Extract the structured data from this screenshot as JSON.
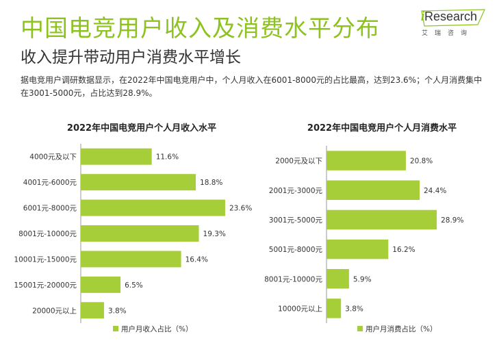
{
  "header": {
    "title": "中国电竞用户收入及消费水平分布",
    "subtitle": "收入提升带动用户消费水平增长",
    "description": "据电竞用户调研数据显示，在2022年中国电竞用户中，个人月收入在6001-8000元的占比最高，达到23.6%；个人月消费集中在3001-5000元，占比达到28.9%。"
  },
  "logo": {
    "main_prefix": "i",
    "main_rest": "Research",
    "sub": "艾瑞咨询"
  },
  "colors": {
    "accent": "#8dc21f",
    "bar": "#a6ce39",
    "axis": "#999999"
  },
  "chart_data": [
    {
      "type": "bar",
      "orientation": "horizontal",
      "title": "2022年中国电竞用户个人月收入水平",
      "categories": [
        "4000元及以下",
        "4001元-6000元",
        "6001元-8000元",
        "8001元-10000元",
        "10001元-15000元",
        "15001元-20000元",
        "20000元以上"
      ],
      "series": [
        {
          "name": "用户月收入占比（%）",
          "values": [
            11.6,
            18.8,
            23.6,
            19.3,
            16.4,
            6.5,
            3.8
          ]
        }
      ],
      "value_suffix": "%",
      "xlim": [
        0,
        24.5
      ],
      "legend": "bottom"
    },
    {
      "type": "bar",
      "orientation": "horizontal",
      "title": "2022年中国电竞用户个人月消费水平",
      "categories": [
        "2000元及以下",
        "2001元-3000元",
        "3001元-5000元",
        "5001元-8000元",
        "8001元-10000元",
        "10000元以上"
      ],
      "series": [
        {
          "name": "用户月消费占比（%）",
          "values": [
            20.8,
            24.4,
            28.9,
            16.2,
            5.9,
            3.8
          ]
        }
      ],
      "value_suffix": "%",
      "xlim": [
        0,
        30.5
      ],
      "legend": "bottom"
    }
  ]
}
